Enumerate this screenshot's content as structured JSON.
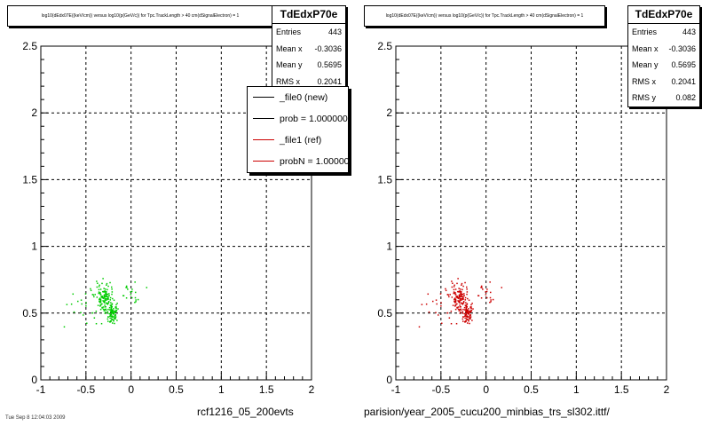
{
  "colors": {
    "ref_line": "#000000",
    "new_points": "#00cc00",
    "ref_points": "#cc0000"
  },
  "chart_data": [
    {
      "type": "scatter",
      "title": "log10(dEdx07E((keV/cm)) versus log10(p(GeV/c)) for Tpc.TrackLength > 40 cm(dSignalElectron) = 1",
      "xlabel": "rcf1216_05_200evts",
      "ylabel": "",
      "xlim": [
        -1,
        2
      ],
      "ylim": [
        0,
        2.5
      ],
      "xticks": [
        "-1",
        "-0.5",
        "0",
        "0.5",
        "1",
        "1.5",
        "2"
      ],
      "yticks": [
        "0",
        "0.5",
        "1",
        "1.5",
        "2",
        "2.5"
      ],
      "grid": true,
      "point_color": "#00cc00",
      "stats": {
        "name": "TdEdxP70e",
        "rows": [
          {
            "k": "Entries",
            "v": "443"
          },
          {
            "k": "Mean x",
            "v": "-0.3036"
          },
          {
            "k": "Mean y",
            "v": "0.5695"
          },
          {
            "k": "RMS x",
            "v": "0.2041"
          }
        ]
      },
      "legend": [
        {
          "label": "_file0 (new)",
          "color": "#000000"
        },
        {
          "label": "prob = 1.000000",
          "color": "#000000"
        },
        {
          "label": "_file1 (ref)",
          "color": "#cc0000"
        },
        {
          "label": "probN = 1.000000",
          "color": "#cc0000"
        }
      ],
      "clusters": [
        {
          "x": -0.3,
          "y": 0.62,
          "n": 110,
          "sx": 0.05,
          "sy": 0.04
        },
        {
          "x": -0.22,
          "y": 0.5,
          "n": 90,
          "sx": 0.03,
          "sy": 0.03
        },
        {
          "x": -0.45,
          "y": 0.55,
          "n": 40,
          "sx": 0.2,
          "sy": 0.1
        },
        {
          "x": 0.0,
          "y": 0.65,
          "n": 20,
          "sx": 0.05,
          "sy": 0.05
        }
      ]
    },
    {
      "type": "scatter",
      "title": "log10(dEdx07E((keV/cm)) versus log10(p(GeV/c)) for Tpc.TrackLength > 40 cm(dSignalElectron) = 1",
      "xlabel": "parision/year_2005_cucu200_minbias_trs_sl302.ittf/",
      "ylabel": "",
      "xlim": [
        -1,
        2
      ],
      "ylim": [
        0,
        2.5
      ],
      "xticks": [
        "-1",
        "-0.5",
        "0",
        "0.5",
        "1",
        "1.5",
        "2"
      ],
      "yticks": [
        "0",
        "0.5",
        "1",
        "1.5",
        "2",
        "2.5"
      ],
      "grid": true,
      "point_color": "#cc0000",
      "stats": {
        "name": "TdEdxP70e",
        "rows": [
          {
            "k": "Entries",
            "v": "443"
          },
          {
            "k": "Mean x",
            "v": "-0.3036"
          },
          {
            "k": "Mean y",
            "v": "0.5695"
          },
          {
            "k": "RMS x",
            "v": "0.2041"
          },
          {
            "k": "RMS y",
            "v": "0.082"
          }
        ]
      },
      "clusters": [
        {
          "x": -0.3,
          "y": 0.62,
          "n": 110,
          "sx": 0.05,
          "sy": 0.04
        },
        {
          "x": -0.22,
          "y": 0.5,
          "n": 90,
          "sx": 0.03,
          "sy": 0.03
        },
        {
          "x": -0.45,
          "y": 0.55,
          "n": 40,
          "sx": 0.2,
          "sy": 0.1
        },
        {
          "x": 0.0,
          "y": 0.65,
          "n": 20,
          "sx": 0.05,
          "sy": 0.05
        }
      ]
    }
  ],
  "footer_stamp": "Tue Sep 8 12:04:03 2009"
}
